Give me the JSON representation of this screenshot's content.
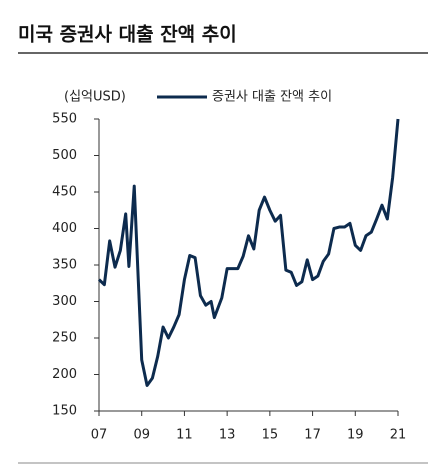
{
  "chart_data": {
    "type": "line",
    "title": "미국 증권사 대출 잔액 추이",
    "y_label": "(십억USD)",
    "series": [
      {
        "name": "증권사 대출 잔액 추이",
        "color": "#0d2b4e",
        "x": [
          2007.0,
          2007.25,
          2007.5,
          2007.75,
          2008.0,
          2008.25,
          2008.4,
          2008.65,
          2009.0,
          2009.25,
          2009.5,
          2009.75,
          2010.0,
          2010.25,
          2010.5,
          2010.75,
          2011.0,
          2011.25,
          2011.5,
          2011.75,
          2012.0,
          2012.25,
          2012.4,
          2012.75,
          2013.0,
          2013.25,
          2013.5,
          2013.75,
          2014.0,
          2014.25,
          2014.5,
          2014.75,
          2015.0,
          2015.25,
          2015.5,
          2015.75,
          2016.0,
          2016.25,
          2016.5,
          2016.75,
          2017.0,
          2017.25,
          2017.5,
          2017.75,
          2018.0,
          2018.25,
          2018.5,
          2018.75,
          2019.0,
          2019.25,
          2019.5,
          2019.75,
          2020.0,
          2020.25,
          2020.5,
          2020.75,
          2021.0
        ],
        "values": [
          330,
          323,
          383,
          347,
          370,
          420,
          348,
          458,
          220,
          185,
          195,
          225,
          265,
          250,
          265,
          282,
          330,
          363,
          360,
          308,
          295,
          300,
          278,
          305,
          345,
          345,
          345,
          362,
          390,
          372,
          425,
          443,
          425,
          410,
          418,
          343,
          340,
          322,
          327,
          357,
          330,
          335,
          355,
          365,
          400,
          402,
          402,
          407,
          377,
          370,
          390,
          395,
          413,
          432,
          413,
          470,
          550
        ]
      }
    ],
    "xlim": [
      2007,
      2021
    ],
    "xticks": [
      {
        "value": 2007,
        "label": "07"
      },
      {
        "value": 2009,
        "label": "09"
      },
      {
        "value": 2011,
        "label": "11"
      },
      {
        "value": 2013,
        "label": "13"
      },
      {
        "value": 2015,
        "label": "15"
      },
      {
        "value": 2017,
        "label": "17"
      },
      {
        "value": 2019,
        "label": "19"
      },
      {
        "value": 2021,
        "label": "21"
      }
    ],
    "ylim": [
      150,
      550
    ],
    "yticks": [
      150,
      200,
      250,
      300,
      350,
      400,
      450,
      500,
      550
    ]
  }
}
